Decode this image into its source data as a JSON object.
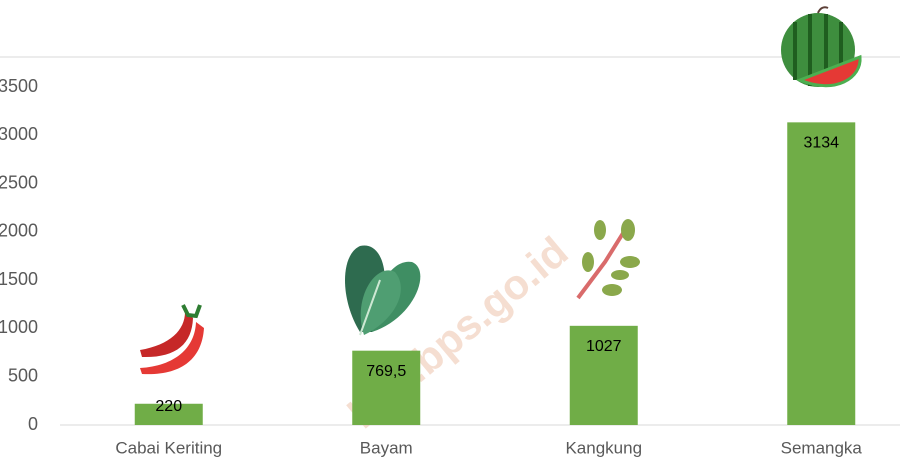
{
  "chart_data": {
    "type": "bar",
    "categories": [
      "Cabai Keriting",
      "Bayam",
      "Kangkung",
      "Semangka"
    ],
    "values": [
      220,
      769.5,
      1027,
      3134
    ],
    "value_labels": [
      "220",
      "769,5",
      "1027",
      "3134"
    ],
    "color": "#70ad47",
    "ylim": [
      0,
      3500
    ],
    "yticks": [
      0,
      500,
      1000,
      1500,
      2000,
      2500,
      3000,
      3500
    ],
    "grid": false,
    "watermark": "kab.bps.go.id"
  }
}
